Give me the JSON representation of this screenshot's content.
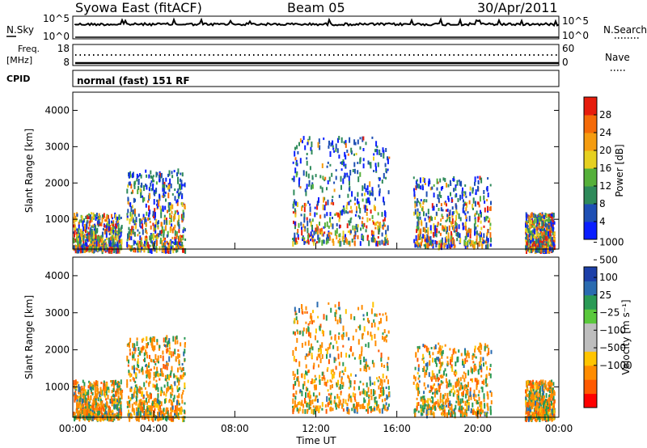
{
  "header": {
    "station": "Syowa East (fitACF)",
    "beam": "Beam 05",
    "date": "30/Apr/2011"
  },
  "strip": {
    "nsky_label": "N.Sky",
    "nsearch_label": "N.Search",
    "noise_ticks": [
      "10^5",
      "10^0"
    ],
    "freq_label_1": "Freq.",
    "freq_label_2": "[MHz]",
    "freq_ticks": [
      "18",
      "8"
    ],
    "nave_label": "Nave",
    "nave_ticks": [
      "60",
      "0"
    ],
    "cpid_label": "CPID",
    "cpid_text": "normal (fast) 151 RF"
  },
  "colors": {
    "power_scale": [
      "#0a1eff",
      "#1e4fb4",
      "#2e8a5a",
      "#55b03a",
      "#e6d020",
      "#f59c10",
      "#f46a08",
      "#e61c0c"
    ],
    "velocity_scale": [
      "#ff0000",
      "#ff5a00",
      "#ff8c00",
      "#ffc400",
      "#bebebe",
      "#bebebe",
      "#5ac83c",
      "#2a9a55",
      "#2a6bb0",
      "#1c3fa8"
    ]
  },
  "chart_data": [
    {
      "type": "heatmap",
      "name": "power-panel",
      "xlabel": "",
      "ylabel": "Slant Range [km]",
      "x_ticks": [
        "00:00",
        "04:00",
        "08:00",
        "12:00",
        "16:00",
        "20:00",
        "00:00"
      ],
      "y_ticks": [
        1000,
        2000,
        3000,
        4000
      ],
      "ylim": [
        180,
        4500
      ],
      "colorbar": {
        "label": "Power [dB]",
        "ticks": [
          "28",
          "24",
          "20",
          "16",
          "12",
          "8",
          "4"
        ]
      }
    },
    {
      "type": "heatmap",
      "name": "velocity-panel",
      "xlabel": "Time UT",
      "ylabel": "Slant Range [km]",
      "x_ticks": [
        "00:00",
        "04:00",
        "08:00",
        "12:00",
        "16:00",
        "20:00",
        "00:00"
      ],
      "y_ticks": [
        1000,
        2000,
        3000,
        4000
      ],
      "ylim": [
        180,
        4500
      ],
      "colorbar": {
        "label": "Velocity [m s⁻¹]",
        "ticks": [
          "1000",
          "500",
          "100",
          "25",
          "−25",
          "−100",
          "−500",
          "−1000"
        ]
      }
    }
  ]
}
